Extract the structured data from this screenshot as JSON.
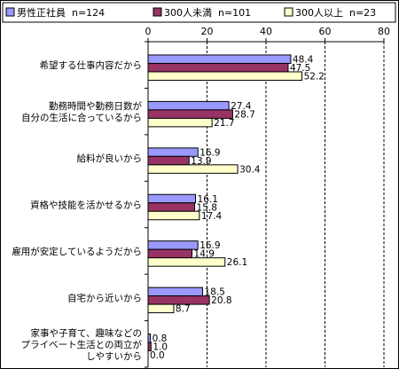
{
  "chart_data": {
    "type": "bar",
    "orientation": "horizontal",
    "title": "",
    "xlabel": "",
    "ylabel": "",
    "xlim": [
      0,
      80
    ],
    "xticks": [
      0,
      20,
      40,
      60,
      80
    ],
    "grid": "vertical dashed",
    "legend_position": "top",
    "categories": [
      [
        "希望する仕事内容だから"
      ],
      [
        "勤務時間や勤務日数が",
        "自分の生活に合っているから"
      ],
      [
        "給料が良いから"
      ],
      [
        "資格や技能を活かせるから"
      ],
      [
        "雇用が安定しているようだから"
      ],
      [
        "自宅から近いから"
      ],
      [
        "家事や子育て、趣味などの",
        "プライベート生活との両立が",
        "しやすいから"
      ]
    ],
    "series": [
      {
        "name": "男性正社員",
        "n": "n=124",
        "color": "#9999ff",
        "values": [
          48.4,
          27.4,
          16.9,
          16.1,
          16.9,
          18.5,
          0.8
        ]
      },
      {
        "name": "300人未満",
        "n": "n=101",
        "color": "#993366",
        "values": [
          47.5,
          28.7,
          13.9,
          15.8,
          14.9,
          20.8,
          1.0
        ]
      },
      {
        "name": "300人以上",
        "n": "n=23",
        "color": "#ffffcc",
        "values": [
          52.2,
          21.7,
          30.4,
          17.4,
          26.1,
          8.7,
          0.0
        ]
      }
    ]
  }
}
